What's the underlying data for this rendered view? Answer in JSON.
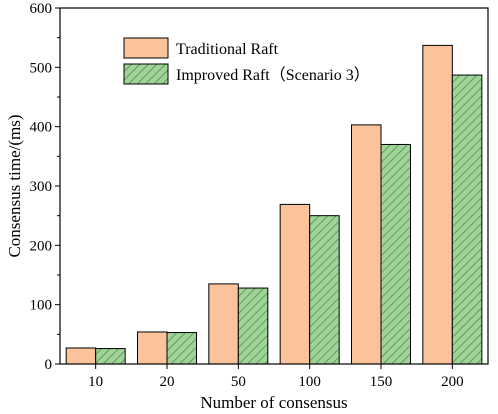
{
  "chart_data": {
    "type": "bar",
    "categories": [
      "10",
      "20",
      "50",
      "100",
      "150",
      "200"
    ],
    "series": [
      {
        "name": "Traditional Raft",
        "values": [
          27,
          54,
          135,
          269,
          403,
          537
        ],
        "color": "#fbc39b",
        "pattern": "solid"
      },
      {
        "name": "Improved Raft（Scenario 3）",
        "values": [
          26,
          53,
          128,
          250,
          370,
          487
        ],
        "color": "#9fd398",
        "pattern": "diagonal-hatch"
      }
    ],
    "xlabel": "Number of consensus",
    "ylabel": "Consensus time/(ms)",
    "ylim": [
      0,
      600
    ],
    "yticks": [
      "0",
      "100",
      "200",
      "300",
      "400",
      "500",
      "600"
    ],
    "grid": false,
    "legend_position": "top-left"
  }
}
